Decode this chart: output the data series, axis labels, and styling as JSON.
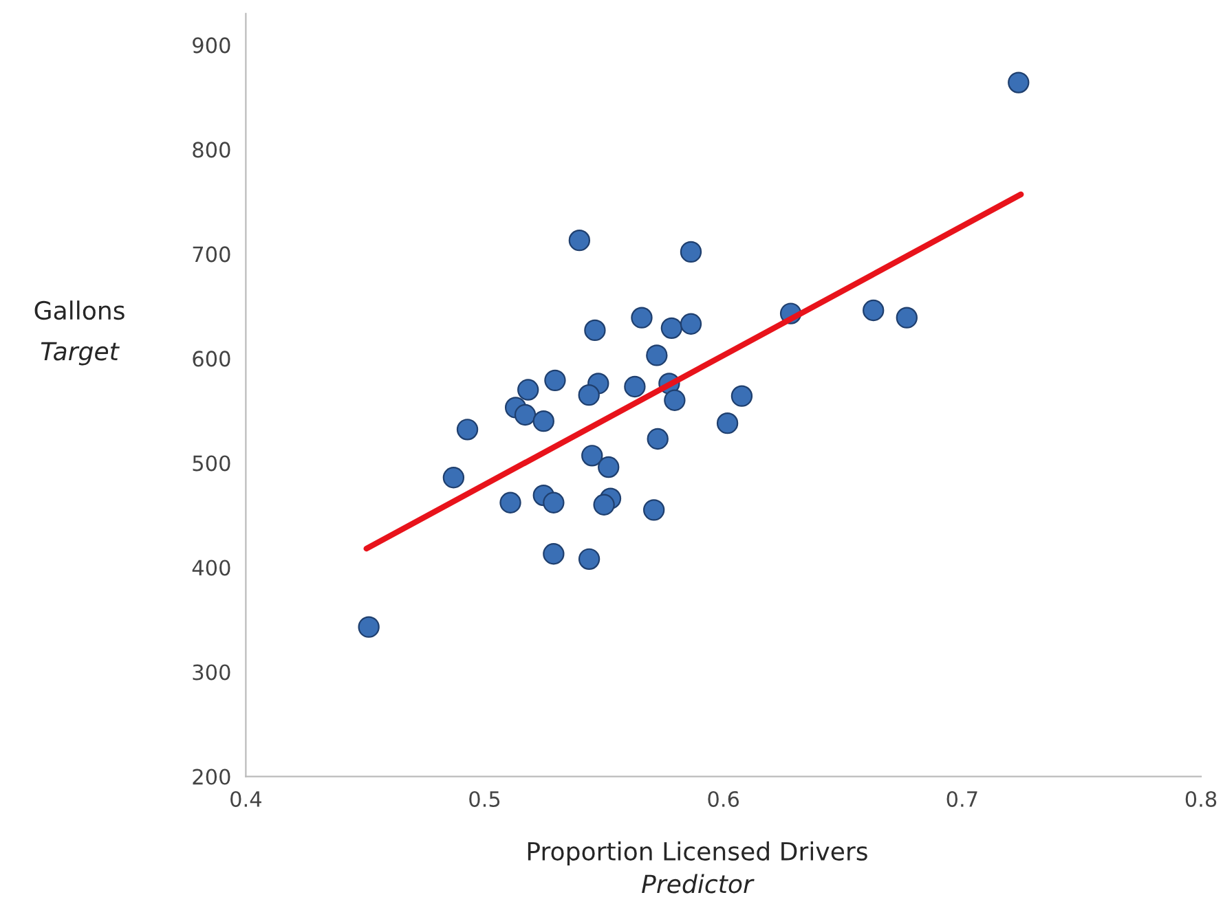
{
  "chart_data": {
    "type": "scatter",
    "xlabel": "Proportion Licensed Drivers\nPredictor",
    "ylabel": "Gallons\nTarget",
    "xlim": [
      0.4,
      0.8
    ],
    "xticks": [
      0.4,
      0.5,
      0.6,
      0.7,
      0.8
    ],
    "ylim": [
      200,
      930
    ],
    "yticks": [
      200,
      300,
      400,
      500,
      600,
      700,
      800,
      900
    ],
    "grid": false,
    "legend": false,
    "marker": "circle",
    "series": [
      {
        "color": "#3a6fb5",
        "x": [
          0.5397,
          0.5864,
          0.5658,
          0.5462,
          0.5783,
          0.5864,
          0.5721,
          0.5295,
          0.5476,
          0.5437,
          0.5629,
          0.5773,
          0.5796,
          0.5182,
          0.513,
          0.517,
          0.5247,
          0.4928,
          0.5725,
          0.487,
          0.545,
          0.5519,
          0.5108,
          0.5247,
          0.5289,
          0.5527,
          0.55,
          0.5709,
          0.5289,
          0.5438,
          0.4515,
          0.7236,
          0.6282,
          0.6628,
          0.6768,
          0.6077,
          0.6017
        ],
        "values": [
          713,
          702,
          639,
          627,
          629,
          633,
          603,
          579,
          576,
          565,
          573,
          576,
          560,
          570,
          553,
          546,
          540,
          532,
          523,
          486,
          507,
          496,
          462,
          469,
          462,
          466,
          460,
          455,
          413,
          408,
          343,
          864,
          643,
          646,
          639,
          564,
          538
        ]
      },
      {
        "type": "line",
        "color": "#e8131b",
        "marker": "none",
        "x": [
          0.4505,
          0.7246
        ],
        "values": [
          418,
          757
        ]
      }
    ]
  }
}
